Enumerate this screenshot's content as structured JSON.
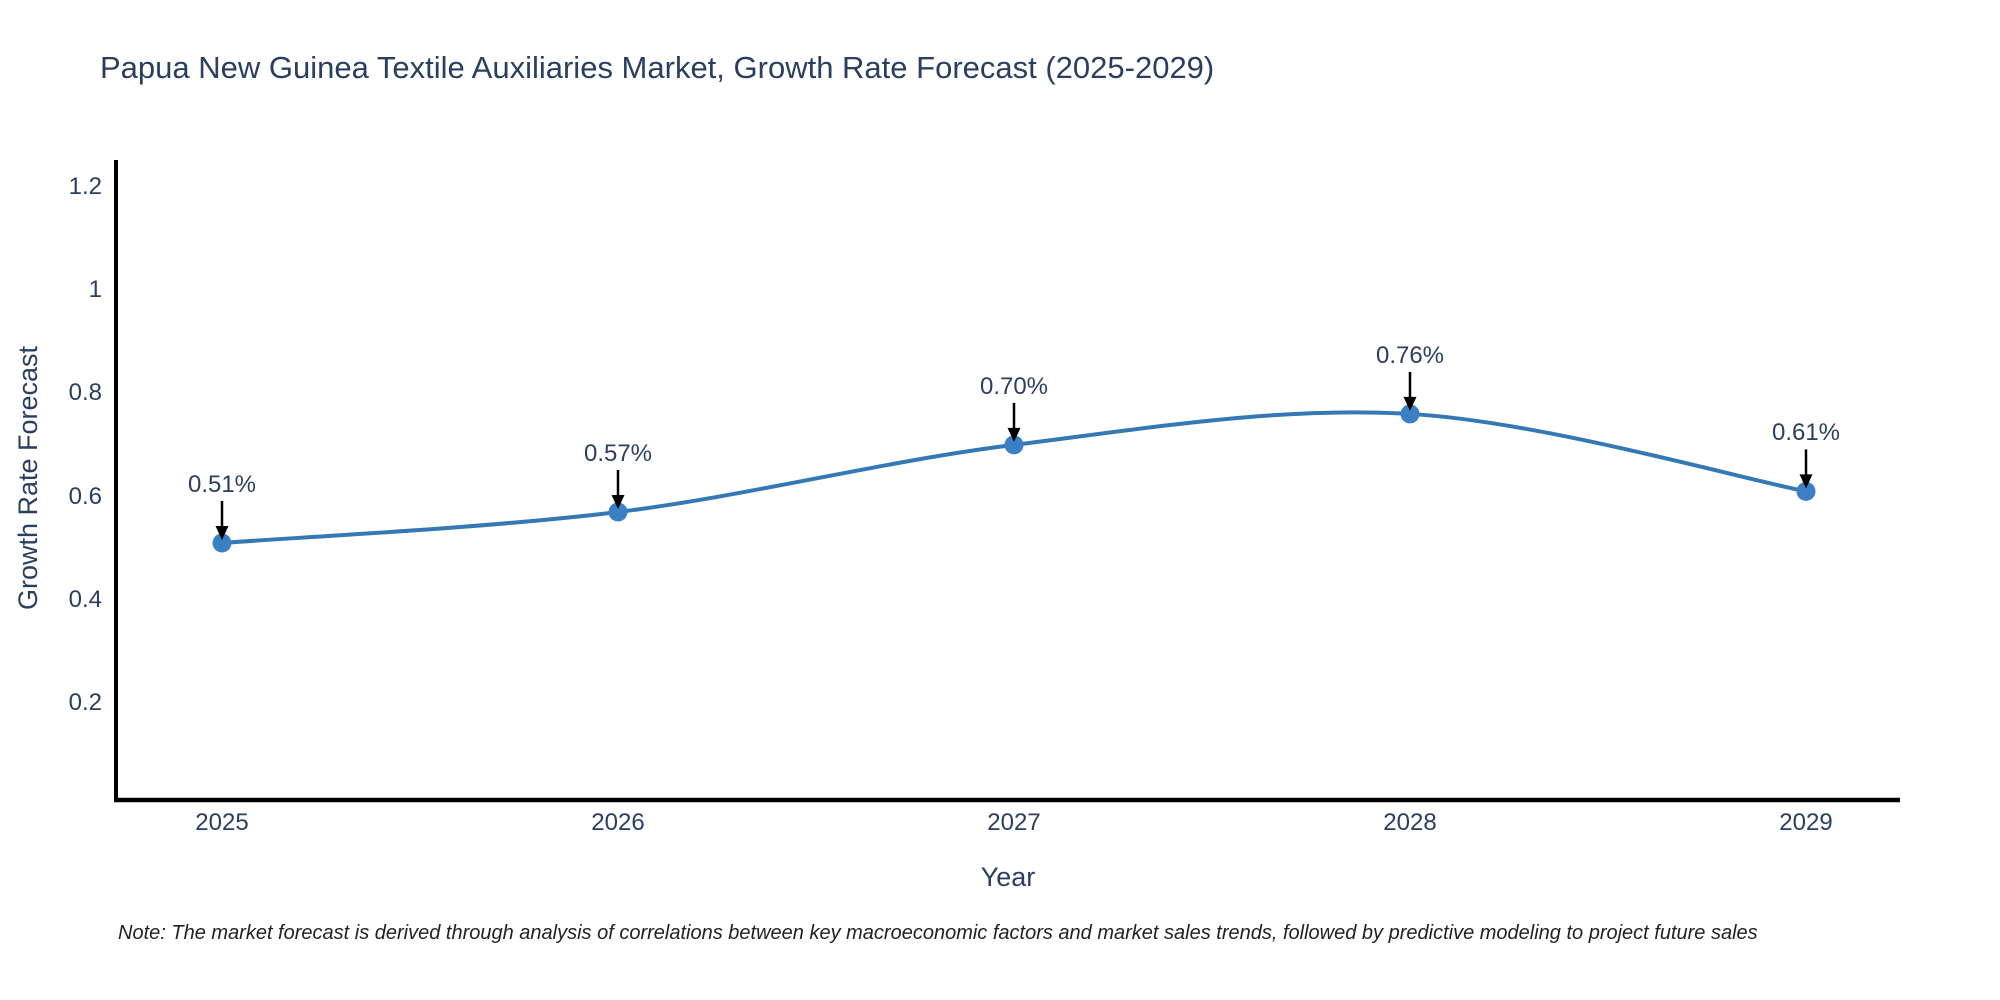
{
  "chart_data": {
    "type": "line",
    "title": "Papua New Guinea Textile Auxiliaries Market, Growth Rate Forecast (2025-2029)",
    "xlabel": "Year",
    "ylabel": "Growth Rate Forecast",
    "categories": [
      "2025",
      "2026",
      "2027",
      "2028",
      "2029"
    ],
    "series": [
      {
        "name": "Growth Rate Forecast",
        "values": [
          0.51,
          0.57,
          0.7,
          0.76,
          0.61
        ]
      }
    ],
    "point_labels": [
      "0.51%",
      "0.57%",
      "0.70%",
      "0.76%",
      "0.61%"
    ],
    "ytick_labels": [
      "0.2",
      "0.4",
      "0.6",
      "0.8",
      "1",
      "1.2"
    ],
    "ytick_values": [
      0.2,
      0.4,
      0.6,
      0.8,
      1.0,
      1.2
    ],
    "ylim": [
      0.012,
      1.252
    ],
    "grid": false,
    "legend_position": "none",
    "line_shape": "spline",
    "annotations_have_arrows": true,
    "colors": {
      "line": "#3478b5",
      "marker": "#3b80c2",
      "arrow": "#000000",
      "axis": "#000000",
      "text": "#2a3f5f"
    }
  },
  "note": {
    "text": "Note: The market forecast is derived through analysis of correlations between key macroeconomic factors and market sales trends, followed by predictive modeling to project future sales"
  }
}
